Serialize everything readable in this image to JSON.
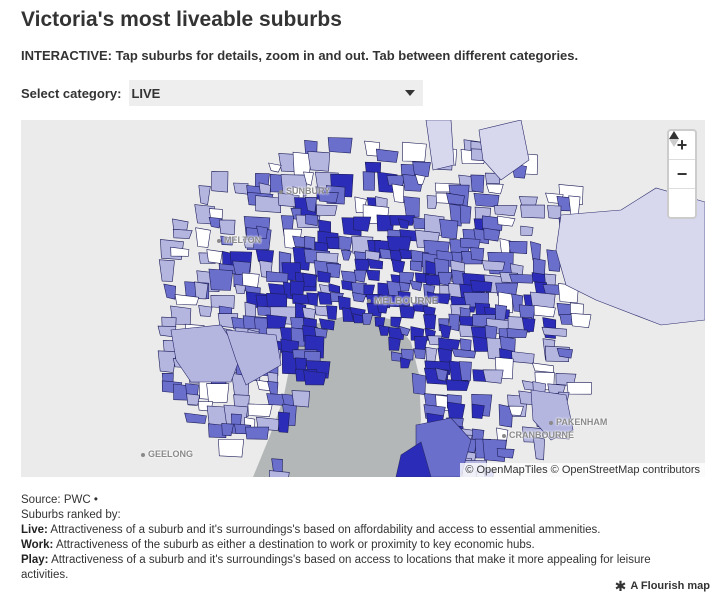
{
  "title": "Victoria's most liveable suburbs",
  "subtitle": "INTERACTIVE: Tap suburbs for details, zoom in and out. Tab between different categories.",
  "category": {
    "label": "Select category:",
    "selected": "LIVE"
  },
  "map": {
    "places": [
      {
        "name": "SUNBURY"
      },
      {
        "name": "MELTON"
      },
      {
        "name": "MELBOURNE"
      },
      {
        "name": "PAKENHAM"
      },
      {
        "name": "CRANBOURNE"
      },
      {
        "name": "GEELONG"
      }
    ],
    "zoom_in": "+",
    "zoom_out": "−",
    "attribution": "© OpenMapTiles © OpenStreetMap contributors",
    "colors": {
      "background": "#ebebeb",
      "water": "#b3b7b7",
      "high": "#2b2cb8",
      "mid": "#6b6fcc",
      "low": "#b4b6e0",
      "lowest": "#d7d8ee"
    }
  },
  "notes": {
    "source": "Source: PWC •",
    "ranked": "Suburbs ranked by:",
    "live_label": "Live:",
    "live_text": "Attractiveness of a suburb and it's surroundings's based on affordability and access to essential ammenities.",
    "work_label": "Work:",
    "work_text": "Attractiveness of the suburb as either a destination to work or proximity to key economic hubs.",
    "play_label": "Play:",
    "play_text": "Attractiveness of a suburb and it's surroundings's based on access to locations that make it more appealing for leisure activities."
  },
  "credit": "A Flourish map"
}
